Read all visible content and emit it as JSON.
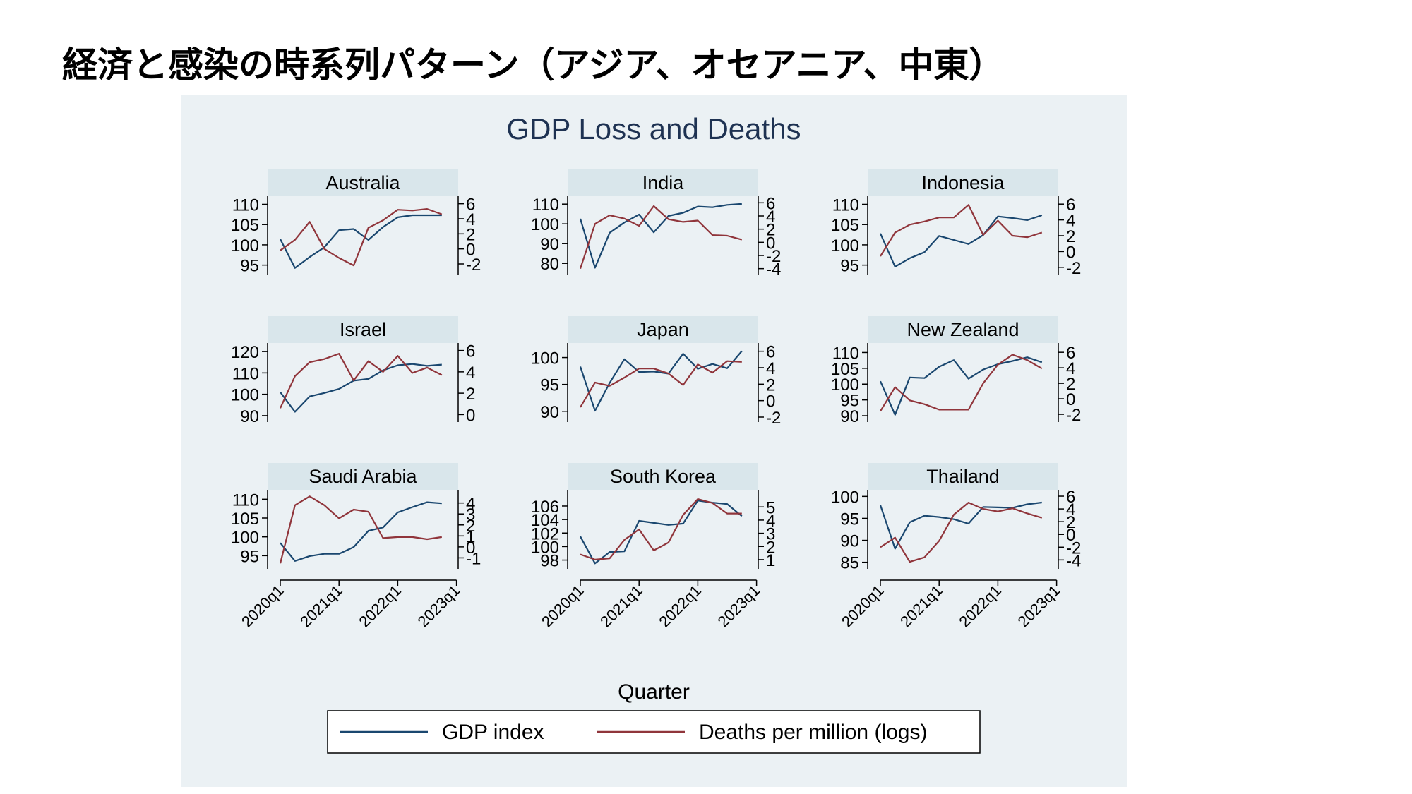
{
  "slide": {
    "title": "経済と感染の時系列パターン（アジア、オセアニア、中東）"
  },
  "chart_data": {
    "type": "line",
    "title": "GDP Loss and Deaths",
    "xlabel": "Quarter",
    "x": [
      "2020q1",
      "2020q2",
      "2020q3",
      "2020q4",
      "2021q1",
      "2021q2",
      "2021q3",
      "2021q4",
      "2022q1",
      "2022q2",
      "2022q3",
      "2022q4"
    ],
    "x_ticks": [
      "2020q1",
      "2021q1",
      "2022q1",
      "2023q1"
    ],
    "legend": {
      "placement": "bottom",
      "entries": [
        "GDP index",
        "Deaths per million (logs)"
      ]
    },
    "colors": {
      "gdp": "#1a476f",
      "deaths": "#90353b",
      "panel_background": "#ebf1f4",
      "strip": "#d9e6eb"
    },
    "panels": [
      {
        "name": "Australia",
        "gdp": [
          101.4,
          94.3,
          97.0,
          99.4,
          103.6,
          103.9,
          101.2,
          104.4,
          106.8,
          107.3,
          107.3,
          107.3
        ],
        "deaths": [
          -0.2,
          1.2,
          3.6,
          0.0,
          -1.2,
          -2.2,
          2.8,
          3.8,
          5.2,
          5.1,
          5.3,
          4.6
        ],
        "left_ticks": [
          95,
          100,
          105,
          110
        ],
        "left_range": [
          92.5,
          112
        ],
        "right_ticks": [
          -2,
          0,
          2,
          4,
          6
        ],
        "right_range": [
          -3.5,
          7
        ]
      },
      {
        "name": "India",
        "gdp": [
          102.6,
          77.8,
          95.5,
          100.7,
          104.7,
          95.7,
          104.0,
          105.6,
          108.8,
          108.4,
          109.6,
          110.1
        ],
        "deaths": [
          -4.0,
          2.8,
          4.1,
          3.6,
          2.5,
          5.5,
          3.5,
          3.1,
          3.3,
          1.1,
          1.0,
          0.4
        ],
        "left_ticks": [
          80,
          90,
          100,
          110
        ],
        "left_range": [
          74,
          114
        ],
        "right_ticks": [
          -4,
          -2,
          0,
          2,
          4,
          6
        ],
        "right_range": [
          -5,
          7
        ]
      },
      {
        "name": "Indonesia",
        "gdp": [
          102.8,
          94.6,
          96.7,
          98.2,
          102.2,
          101.2,
          100.2,
          102.4,
          107.0,
          106.6,
          106.1,
          107.3
        ],
        "deaths": [
          -0.6,
          2.4,
          3.4,
          3.8,
          4.3,
          4.3,
          5.9,
          2.1,
          3.9,
          2.0,
          1.8,
          2.4
        ],
        "left_ticks": [
          95,
          100,
          105,
          110
        ],
        "left_range": [
          92.5,
          112
        ],
        "right_ticks": [
          -2,
          0,
          2,
          4,
          6
        ],
        "right_range": [
          -3,
          7
        ]
      },
      {
        "name": "Israel",
        "gdp": [
          101.0,
          91.8,
          99.0,
          100.6,
          102.5,
          106.4,
          107.2,
          111.2,
          113.6,
          114.2,
          113.3,
          113.9
        ],
        "deaths": [
          0.6,
          3.6,
          4.9,
          5.2,
          5.7,
          3.2,
          5.0,
          4.0,
          5.5,
          3.9,
          4.4,
          3.7
        ],
        "left_ticks": [
          90,
          100,
          110,
          120
        ],
        "left_range": [
          87,
          124
        ],
        "right_ticks": [
          0,
          2,
          4,
          6
        ],
        "right_range": [
          -0.7,
          6.7
        ]
      },
      {
        "name": "Japan",
        "gdp": [
          98.3,
          90.1,
          95.3,
          99.7,
          97.3,
          97.4,
          97.0,
          100.7,
          97.9,
          98.8,
          98.0,
          101.2
        ],
        "deaths": [
          -0.8,
          2.2,
          1.8,
          2.8,
          3.9,
          3.9,
          3.3,
          1.9,
          4.4,
          3.4,
          4.8,
          4.7
        ],
        "left_ticks": [
          90,
          95,
          100
        ],
        "left_range": [
          88,
          102.7
        ],
        "right_ticks": [
          -2,
          0,
          2,
          4,
          6
        ],
        "right_range": [
          -2.6,
          7
        ]
      },
      {
        "name": "New Zealand",
        "gdp": [
          100.9,
          90.3,
          102.1,
          101.9,
          105.5,
          107.6,
          101.7,
          104.6,
          106.3,
          107.3,
          108.5,
          106.9
        ],
        "deaths": [
          -1.6,
          1.5,
          -0.2,
          -0.7,
          -1.4,
          -1.4,
          -1.4,
          2.0,
          4.4,
          5.7,
          5.0,
          3.9
        ],
        "left_ticks": [
          90,
          95,
          100,
          105,
          110
        ],
        "left_range": [
          88,
          113
        ],
        "right_ticks": [
          -2,
          0,
          2,
          4,
          6
        ],
        "right_range": [
          -3,
          7.2
        ]
      },
      {
        "name": "Saudi Arabia",
        "gdp": [
          98.4,
          93.6,
          94.9,
          95.5,
          95.5,
          97.3,
          101.6,
          102.5,
          106.5,
          107.9,
          109.2,
          108.9
        ],
        "deaths": [
          -1.5,
          3.8,
          4.6,
          3.8,
          2.6,
          3.4,
          3.2,
          0.8,
          0.9,
          0.9,
          0.7,
          0.9
        ],
        "left_ticks": [
          95,
          100,
          105,
          110
        ],
        "left_range": [
          91.5,
          112.5
        ],
        "right_ticks": [
          -1,
          0,
          1,
          2,
          3,
          4
        ],
        "right_range": [
          -2,
          5.2
        ]
      },
      {
        "name": "South Korea",
        "gdp": [
          101.5,
          97.5,
          99.2,
          99.3,
          103.8,
          103.5,
          103.2,
          103.4,
          106.8,
          106.5,
          106.3,
          104.5
        ],
        "deaths": [
          1.4,
          1.0,
          1.1,
          2.5,
          3.3,
          1.7,
          2.3,
          4.4,
          5.6,
          5.3,
          4.5,
          4.5
        ],
        "left_ticks": [
          98,
          100,
          102,
          104,
          106
        ],
        "left_range": [
          96.7,
          108.4
        ],
        "right_ticks": [
          1,
          2,
          3,
          4,
          5
        ],
        "right_range": [
          0.3,
          6.3
        ]
      },
      {
        "name": "Thailand",
        "gdp": [
          98.0,
          88.1,
          94.1,
          95.6,
          95.3,
          94.8,
          93.8,
          97.6,
          97.5,
          97.4,
          98.2,
          98.6
        ],
        "deaths": [
          -2.0,
          -0.5,
          -4.3,
          -3.6,
          -1.0,
          3.1,
          5.0,
          4.0,
          3.6,
          4.1,
          3.3,
          2.6
        ],
        "left_ticks": [
          85,
          90,
          95,
          100
        ],
        "left_range": [
          83.5,
          101.5
        ],
        "right_ticks": [
          -4,
          -2,
          0,
          2,
          4,
          6
        ],
        "right_range": [
          -5.4,
          7
        ]
      }
    ]
  }
}
